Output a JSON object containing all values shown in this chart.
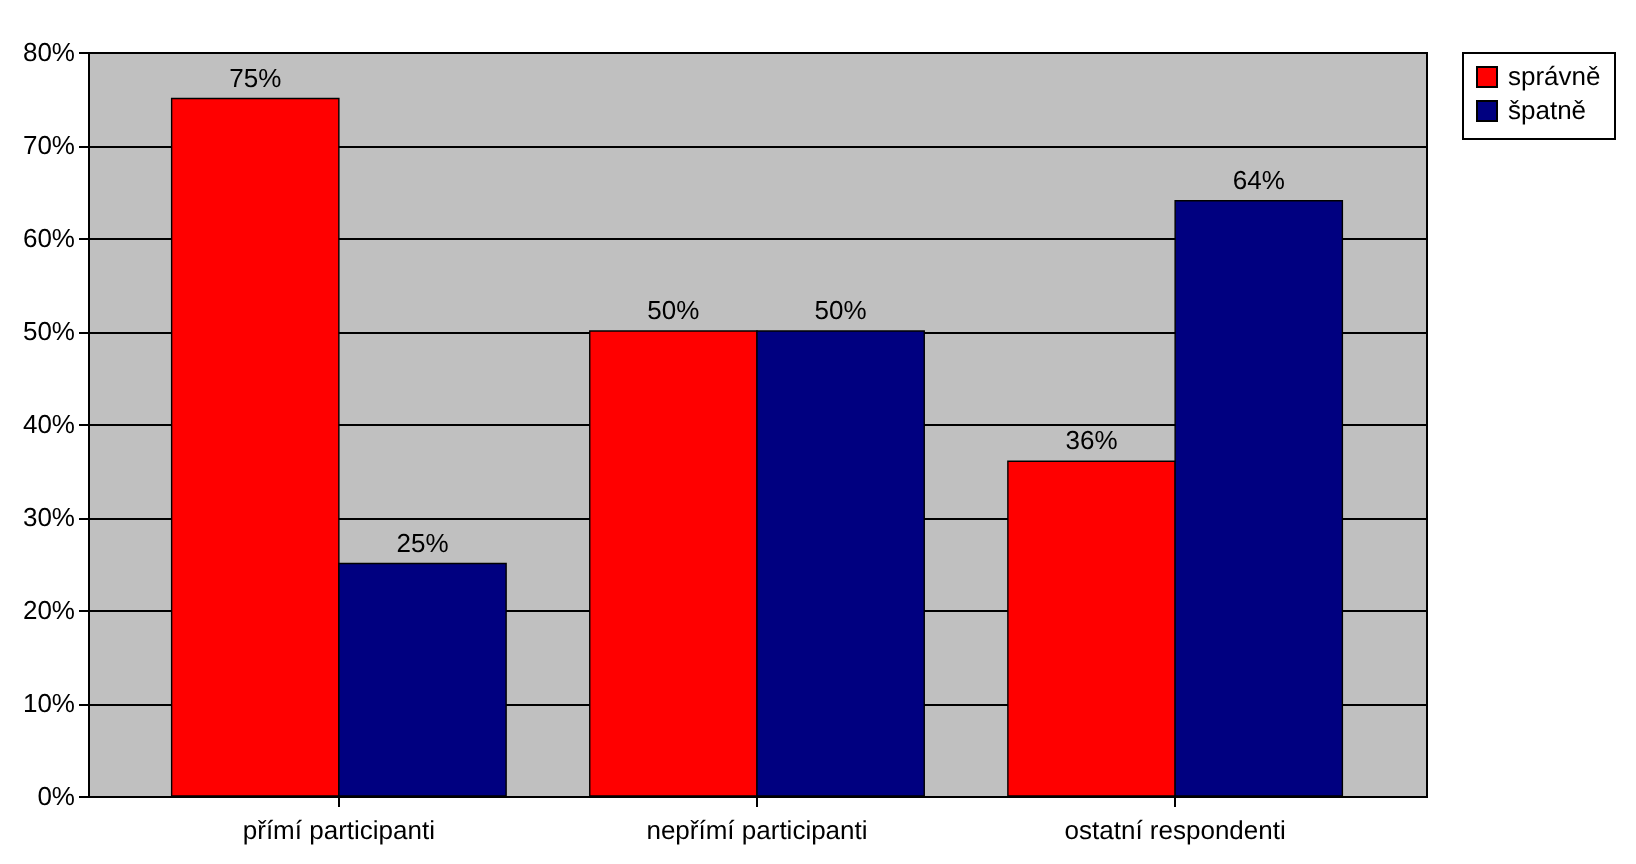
{
  "chart_data": {
    "type": "bar",
    "categories": [
      "přímí participanti",
      "nepřímí participanti",
      "ostatní respondenti"
    ],
    "series": [
      {
        "name": "správně",
        "color": "#ff0000",
        "values": [
          75,
          50,
          36
        ],
        "value_labels": [
          "75%",
          "50%",
          "36%"
        ]
      },
      {
        "name": "špatně",
        "color": "#000080",
        "values": [
          25,
          50,
          64
        ],
        "value_labels": [
          "25%",
          "50%",
          "64%"
        ]
      }
    ],
    "ylim": [
      0,
      80
    ],
    "yticks": [
      {
        "value": 0,
        "label": "0%"
      },
      {
        "value": 10,
        "label": "10%"
      },
      {
        "value": 20,
        "label": "20%"
      },
      {
        "value": 30,
        "label": "30%"
      },
      {
        "value": 40,
        "label": "40%"
      },
      {
        "value": 50,
        "label": "50%"
      },
      {
        "value": 60,
        "label": "60%"
      },
      {
        "value": 70,
        "label": "70%"
      },
      {
        "value": 80,
        "label": "80%"
      }
    ],
    "grid": "y",
    "legend": "right"
  }
}
